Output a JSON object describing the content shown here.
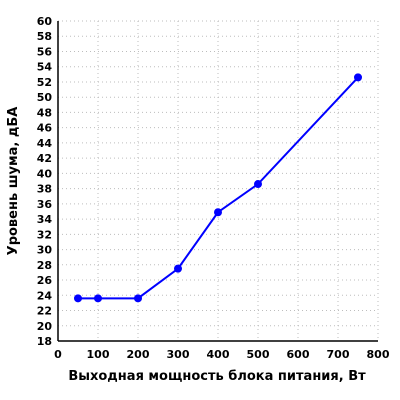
{
  "chart_data": {
    "type": "line",
    "title": "",
    "xlabel": "Выходная мощность блока питания, Вт",
    "ylabel": "Уровень шума, дБА",
    "xlim": [
      0,
      800
    ],
    "ylim": [
      18,
      60
    ],
    "x_ticks": [
      0,
      100,
      200,
      300,
      400,
      500,
      600,
      700,
      800
    ],
    "y_ticks": [
      18,
      20,
      22,
      24,
      26,
      28,
      30,
      32,
      34,
      36,
      38,
      40,
      42,
      44,
      46,
      48,
      50,
      52,
      54,
      56,
      58,
      60
    ],
    "grid": true,
    "series": [
      {
        "color": "#0000ff",
        "x": [
          50,
          100,
          200,
          300,
          400,
          500,
          750
        ],
        "y": [
          23.6,
          23.6,
          23.6,
          27.5,
          34.9,
          38.6,
          52.6
        ]
      }
    ]
  }
}
